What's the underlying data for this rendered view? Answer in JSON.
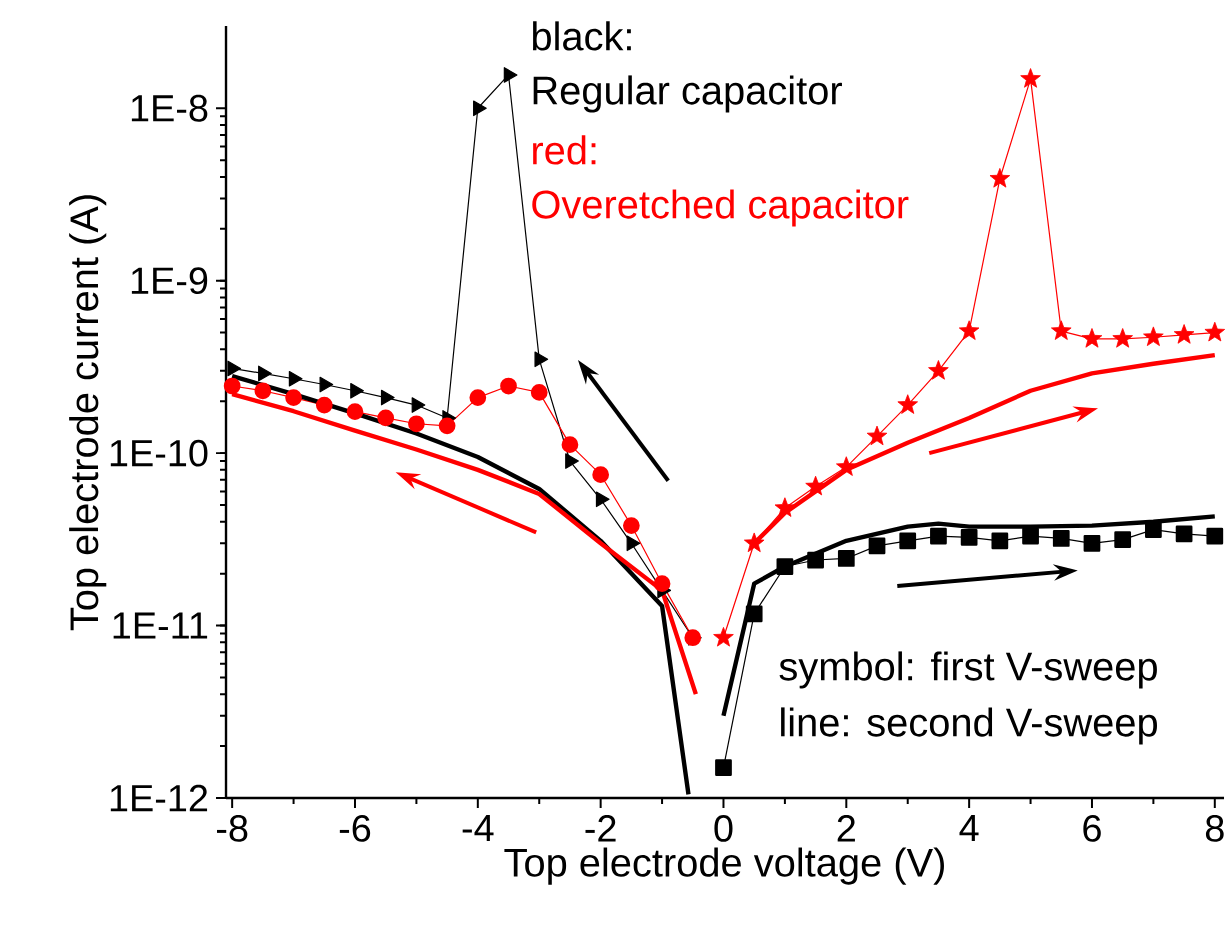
{
  "chart_data": {
    "type": "line",
    "xlabel": "Top electrode voltage (V)",
    "ylabel": "Top electrode current (A)",
    "xlim": [
      -8.1,
      8.15
    ],
    "ylim": [
      1e-12,
      3e-08
    ],
    "log": "y",
    "grid": false,
    "xticks": [
      -8,
      -6,
      -4,
      -2,
      0,
      2,
      4,
      6,
      8
    ],
    "yticks": [
      {
        "value": 1e-12,
        "label": "1E-12"
      },
      {
        "value": 1e-11,
        "label": "1E-11"
      },
      {
        "value": 1e-10,
        "label": "1E-10"
      },
      {
        "value": 1e-09,
        "label": "1E-9"
      },
      {
        "value": 1e-08,
        "label": "1E-8"
      }
    ],
    "annotations": [
      "black:",
      "Regular capacitor",
      "red:",
      "Overetched capacitor",
      "symbol: first V-sweep",
      "line: second V-sweep"
    ],
    "series": [
      {
        "color": "#000000",
        "marker": "triangle",
        "x": [
          -8,
          -7.5,
          -7,
          -6.5,
          -6,
          -5.5,
          -5,
          -4.5,
          -4,
          -3.5,
          -3,
          -2.5,
          -2,
          -1.5,
          -1,
          -0.5
        ],
        "values": [
          3.1e-10,
          2.9e-10,
          2.7e-10,
          2.5e-10,
          2.3e-10,
          2.1e-10,
          1.9e-10,
          1.6e-10,
          1e-08,
          1.56e-08,
          3.5e-10,
          9e-11,
          5.4e-11,
          3e-11,
          1.6e-11,
          8.5e-12
        ]
      },
      {
        "color": "#ff0000",
        "marker": "circle",
        "x": [
          -8,
          -7.5,
          -7,
          -6.5,
          -6,
          -5.5,
          -5,
          -4.5,
          -4,
          -3.5,
          -3,
          -2.5,
          -2,
          -1.5,
          -1,
          -0.5
        ],
        "values": [
          2.45e-10,
          2.3e-10,
          2.1e-10,
          1.9e-10,
          1.74e-10,
          1.6e-10,
          1.48e-10,
          1.44e-10,
          2.1e-10,
          2.45e-10,
          2.25e-10,
          1.12e-10,
          7.5e-11,
          3.8e-11,
          1.75e-11,
          8.5e-12
        ]
      },
      {
        "color": "#ff0000",
        "marker": "star",
        "x": [
          0,
          0.5,
          1,
          1.5,
          2,
          2.5,
          3,
          3.5,
          4,
          4.5,
          5,
          5.5,
          6,
          6.5,
          7,
          7.5,
          8
        ],
        "values": [
          8.5e-12,
          3e-11,
          4.8e-11,
          6.4e-11,
          8.3e-11,
          1.25e-10,
          1.9e-10,
          3e-10,
          5.1e-10,
          3.9e-09,
          1.48e-08,
          5.1e-10,
          4.6e-10,
          4.6e-10,
          4.7e-10,
          4.85e-10,
          5e-10
        ]
      },
      {
        "color": "#000000",
        "marker": "square",
        "x": [
          0,
          0.5,
          1,
          1.5,
          2,
          2.5,
          3,
          3.5,
          4,
          4.5,
          5,
          5.5,
          6,
          6.5,
          7,
          7.5,
          8
        ],
        "values": [
          1.5e-12,
          1.17e-11,
          2.2e-11,
          2.4e-11,
          2.45e-11,
          2.9e-11,
          3.1e-11,
          3.3e-11,
          3.25e-11,
          3.1e-11,
          3.3e-11,
          3.2e-11,
          3e-11,
          3.15e-11,
          3.6e-11,
          3.4e-11,
          3.3e-11
        ]
      },
      {
        "color": "#000000",
        "marker": "none",
        "x": [
          -8,
          -7,
          -6,
          -5,
          -4,
          -3,
          -2,
          -1,
          -0.57
        ],
        "values": [
          2.8e-10,
          2.2e-10,
          1.7e-10,
          1.3e-10,
          9.5e-11,
          6.2e-11,
          3.1e-11,
          1.3e-11,
          1.05e-12
        ]
      },
      {
        "color": "#ff0000",
        "marker": "none",
        "x": [
          -8,
          -7,
          -6,
          -5,
          -4,
          -3,
          -2,
          -1,
          -0.45
        ],
        "values": [
          2.2e-10,
          1.75e-10,
          1.35e-10,
          1.05e-10,
          8e-11,
          5.8e-11,
          3e-11,
          1.6e-11,
          4e-12
        ]
      },
      {
        "color": "#000000",
        "marker": "none",
        "x": [
          0,
          0.5,
          1,
          2,
          3,
          3.5,
          4,
          5,
          6,
          7,
          8
        ],
        "values": [
          3e-12,
          1.75e-11,
          2.2e-11,
          3.1e-11,
          3.75e-11,
          3.9e-11,
          3.75e-11,
          3.75e-11,
          3.8e-11,
          4e-11,
          4.3e-11
        ]
      },
      {
        "color": "#ff0000",
        "marker": "none",
        "x": [
          0.5,
          1,
          1.5,
          2,
          3,
          4,
          5,
          6,
          7,
          8
        ],
        "values": [
          3e-11,
          4.5e-11,
          6e-11,
          8e-11,
          1.15e-10,
          1.6e-10,
          2.3e-10,
          2.9e-10,
          3.3e-10,
          3.7e-10
        ]
      }
    ]
  }
}
